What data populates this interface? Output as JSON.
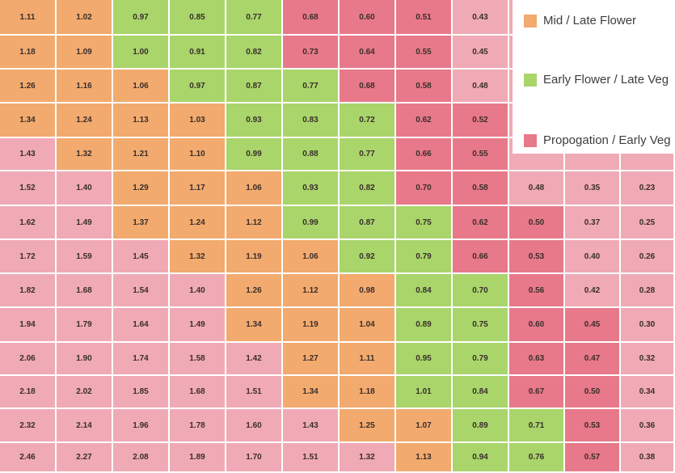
{
  "chart_data": {
    "type": "heatmap",
    "title": "",
    "xlabel": "",
    "ylabel": "",
    "legend": {
      "placement": "top-right",
      "items": [
        {
          "key": "mid",
          "label": "Mid / Late Flower",
          "color": "#f2aa6e"
        },
        {
          "key": "early",
          "label": "Early Flower / Late Veg",
          "color": "#a9d56b"
        },
        {
          "key": "prop",
          "label": "Propogation / Early Veg",
          "color": "#e8798a"
        }
      ]
    },
    "colors": {
      "mid": "#f2aa6e",
      "early": "#a9d56b",
      "prop": "#e8798a",
      "out": "#f0aab5"
    },
    "rows": [
      {
        "values": [
          "1.11",
          "1.02",
          "0.97",
          "0.85",
          "0.77",
          "0.68",
          "0.60",
          "0.51",
          "0.43",
          "",
          "",
          ""
        ],
        "classes": [
          "mid",
          "mid",
          "early",
          "early",
          "early",
          "prop",
          "prop",
          "prop",
          "out",
          "",
          "",
          ""
        ]
      },
      {
        "values": [
          "1.18",
          "1.09",
          "1.00",
          "0.91",
          "0.82",
          "0.73",
          "0.64",
          "0.55",
          "0.45",
          "",
          "",
          ""
        ],
        "classes": [
          "mid",
          "mid",
          "early",
          "early",
          "early",
          "prop",
          "prop",
          "prop",
          "out",
          "",
          "",
          ""
        ]
      },
      {
        "values": [
          "1.26",
          "1.16",
          "1.06",
          "0.97",
          "0.87",
          "0.77",
          "0.68",
          "0.58",
          "0.48",
          "",
          "",
          ""
        ],
        "classes": [
          "mid",
          "mid",
          "mid",
          "early",
          "early",
          "early",
          "prop",
          "prop",
          "out",
          "",
          "",
          ""
        ]
      },
      {
        "values": [
          "1.34",
          "1.24",
          "1.13",
          "1.03",
          "0.93",
          "0.83",
          "0.72",
          "0.62",
          "0.52",
          "",
          "",
          ""
        ],
        "classes": [
          "mid",
          "mid",
          "mid",
          "mid",
          "early",
          "early",
          "early",
          "prop",
          "prop",
          "",
          "",
          ""
        ]
      },
      {
        "values": [
          "1.43",
          "1.32",
          "1.21",
          "1.10",
          "0.99",
          "0.88",
          "0.77",
          "0.66",
          "0.55",
          "",
          "",
          ""
        ],
        "classes": [
          "out",
          "mid",
          "mid",
          "mid",
          "early",
          "early",
          "early",
          "prop",
          "prop",
          "",
          "",
          ""
        ]
      },
      {
        "values": [
          "1.52",
          "1.40",
          "1.29",
          "1.17",
          "1.06",
          "0.93",
          "0.82",
          "0.70",
          "0.58",
          "0.48",
          "0.35",
          "0.23"
        ],
        "classes": [
          "out",
          "out",
          "mid",
          "mid",
          "mid",
          "early",
          "early",
          "prop",
          "prop",
          "out",
          "out",
          "out"
        ]
      },
      {
        "values": [
          "1.62",
          "1.49",
          "1.37",
          "1.24",
          "1.12",
          "0.99",
          "0.87",
          "0.75",
          "0.62",
          "0.50",
          "0.37",
          "0.25"
        ],
        "classes": [
          "out",
          "out",
          "mid",
          "mid",
          "mid",
          "early",
          "early",
          "early",
          "prop",
          "prop",
          "out",
          "out"
        ]
      },
      {
        "values": [
          "1.72",
          "1.59",
          "1.45",
          "1.32",
          "1.19",
          "1.06",
          "0.92",
          "0.79",
          "0.66",
          "0.53",
          "0.40",
          "0.26"
        ],
        "classes": [
          "out",
          "out",
          "out",
          "mid",
          "mid",
          "mid",
          "early",
          "early",
          "prop",
          "prop",
          "out",
          "out"
        ]
      },
      {
        "values": [
          "1.82",
          "1.68",
          "1.54",
          "1.40",
          "1.26",
          "1.12",
          "0.98",
          "0.84",
          "0.70",
          "0.56",
          "0.42",
          "0.28"
        ],
        "classes": [
          "out",
          "out",
          "out",
          "out",
          "mid",
          "mid",
          "mid",
          "early",
          "early",
          "prop",
          "out",
          "out"
        ]
      },
      {
        "values": [
          "1.94",
          "1.79",
          "1.64",
          "1.49",
          "1.34",
          "1.19",
          "1.04",
          "0.89",
          "0.75",
          "0.60",
          "0.45",
          "0.30"
        ],
        "classes": [
          "out",
          "out",
          "out",
          "out",
          "mid",
          "mid",
          "mid",
          "early",
          "early",
          "prop",
          "prop",
          "out"
        ]
      },
      {
        "values": [
          "2.06",
          "1.90",
          "1.74",
          "1.58",
          "1.42",
          "1.27",
          "1.11",
          "0.95",
          "0.79",
          "0.63",
          "0.47",
          "0.32"
        ],
        "classes": [
          "out",
          "out",
          "out",
          "out",
          "out",
          "mid",
          "mid",
          "early",
          "early",
          "prop",
          "prop",
          "out"
        ]
      },
      {
        "values": [
          "2.18",
          "2.02",
          "1.85",
          "1.68",
          "1.51",
          "1.34",
          "1.18",
          "1.01",
          "0.84",
          "0.67",
          "0.50",
          "0.34"
        ],
        "classes": [
          "out",
          "out",
          "out",
          "out",
          "out",
          "mid",
          "mid",
          "early",
          "early",
          "prop",
          "prop",
          "out"
        ]
      },
      {
        "values": [
          "2.32",
          "2.14",
          "1.96",
          "1.78",
          "1.60",
          "1.43",
          "1.25",
          "1.07",
          "0.89",
          "0.71",
          "0.53",
          "0.36"
        ],
        "classes": [
          "out",
          "out",
          "out",
          "out",
          "out",
          "out",
          "mid",
          "mid",
          "early",
          "early",
          "prop",
          "out"
        ]
      },
      {
        "values": [
          "2.46",
          "2.27",
          "2.08",
          "1.89",
          "1.70",
          "1.51",
          "1.32",
          "1.13",
          "0.94",
          "0.76",
          "0.57",
          "0.38"
        ],
        "classes": [
          "out",
          "out",
          "out",
          "out",
          "out",
          "out",
          "out",
          "mid",
          "early",
          "early",
          "prop",
          "out"
        ]
      }
    ]
  }
}
